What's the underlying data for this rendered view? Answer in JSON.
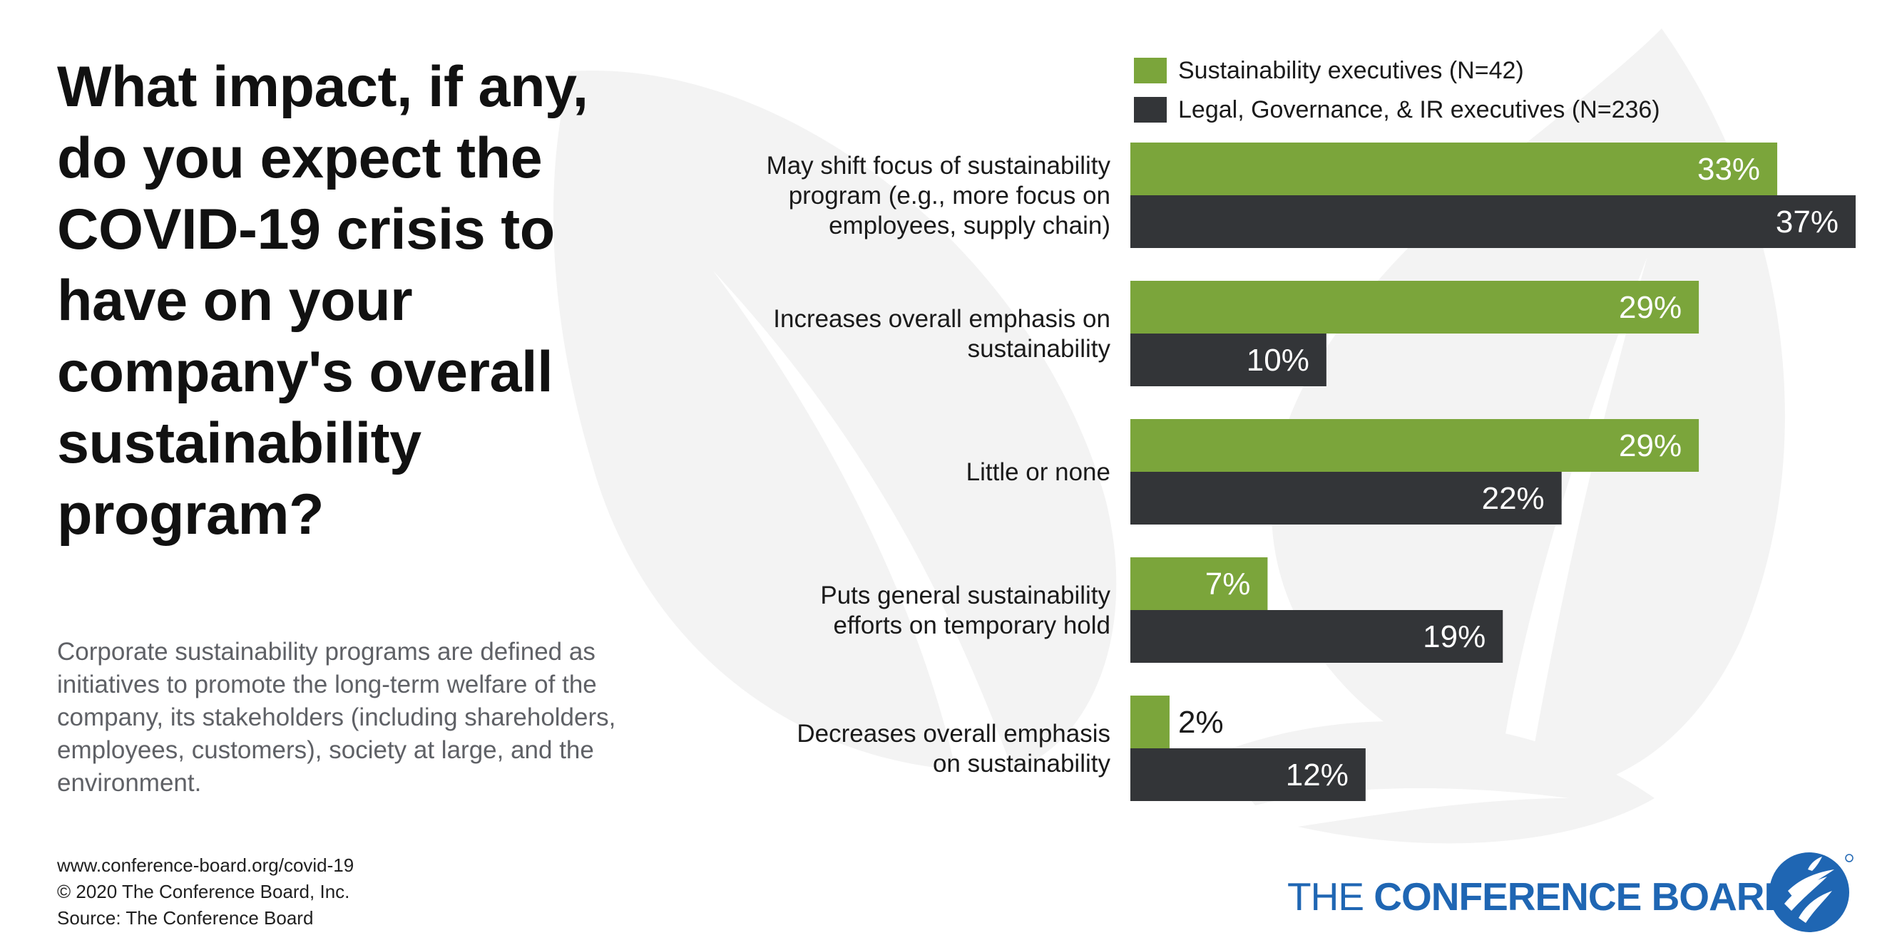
{
  "question": "What impact, if any, do you expect the COVID-19 crisis to have on your company's overall sustainability program?",
  "definition": "Corporate sustainability programs are defined as initiatives to promote the long-term welfare of the company, its stakeholders (including shareholders, employees, customers), society at large, and the environment.",
  "footer": {
    "url": "www.conference-board.org/covid-19",
    "copyright": "© 2020 The Conference Board, Inc.",
    "source": "Source:  The Conference Board"
  },
  "logo": {
    "text_light": "THE ",
    "text_bold": "CONFERENCE BOARD",
    "color": "#1f66b3"
  },
  "colors": {
    "series1": "#7ba53b",
    "series2": "#333538",
    "label_light": "#ffffff",
    "label_dark": "#1a1a1a",
    "leaf": "#f3f3f3"
  },
  "chart_data": {
    "type": "bar",
    "orientation": "horizontal",
    "categories": [
      [
        "May shift focus of sustainability",
        "program (e.g., more focus on",
        "employees, supply chain)"
      ],
      [
        "Increases overall emphasis on",
        "sustainability"
      ],
      [
        "Little or none"
      ],
      [
        "Puts general sustainability",
        "efforts on temporary hold"
      ],
      [
        "Decreases overall emphasis",
        "on sustainability"
      ]
    ],
    "series": [
      {
        "name": "Sustainability executives (N=42)",
        "values": [
          33,
          29,
          29,
          7,
          2
        ],
        "labels": [
          "33%",
          "29%",
          "29%",
          "7%",
          "2%"
        ],
        "color": "#7ba53b"
      },
      {
        "name": "Legal, Governance, & IR executives (N=236)",
        "values": [
          37,
          10,
          22,
          19,
          12
        ],
        "labels": [
          "37%",
          "10%",
          "22%",
          "19%",
          "12%"
        ],
        "color": "#333538"
      }
    ],
    "xlim": [
      0,
      37
    ],
    "grid": false,
    "legend_position": "top"
  }
}
